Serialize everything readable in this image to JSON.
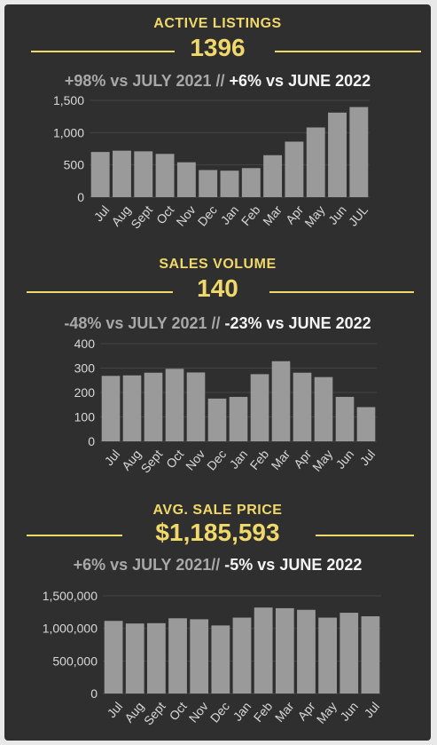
{
  "colors": {
    "accent": "#f0d96a",
    "background": "#2f2f2f",
    "bar": "#9a9a9a",
    "text_muted": "#a8a8a8",
    "text_light": "#f4f4f4"
  },
  "sections": [
    {
      "title": "ACTIVE LISTINGS",
      "headline": "1396",
      "compare_prior": "+98% vs JULY 2021",
      "compare_sep": " // ",
      "compare_recent": "+6% vs JUNE 2022"
    },
    {
      "title": "SALES VOLUME",
      "headline": "140",
      "compare_prior": "-48% vs JULY 2021",
      "compare_sep": " // ",
      "compare_recent": "-23% vs JUNE 2022"
    },
    {
      "title": "AVG. SALE PRICE",
      "headline": "$1,185,593",
      "compare_prior": "+6% vs JULY 2021",
      "compare_sep": "// ",
      "compare_recent": "-5% vs JUNE 2022"
    }
  ],
  "chart_data": [
    {
      "type": "bar",
      "title": "ACTIVE LISTINGS",
      "categories": [
        "Jul",
        "Aug",
        "Sept",
        "Oct",
        "Nov",
        "Dec",
        "Jan",
        "Feb",
        "Mar",
        "Apr",
        "May",
        "Jun",
        "JUL"
      ],
      "values": [
        700,
        720,
        710,
        670,
        540,
        420,
        410,
        450,
        650,
        860,
        1080,
        1310,
        1396
      ],
      "ylim": [
        0,
        1500
      ],
      "yticks": [
        0,
        500,
        1000,
        1500
      ],
      "ytick_labels": [
        "0",
        "500",
        "1,000",
        "1,500"
      ],
      "grid": true
    },
    {
      "type": "bar",
      "title": "SALES VOLUME",
      "categories": [
        "Jul",
        "Aug",
        "Sept",
        "Oct",
        "Nov",
        "Dec",
        "Jan",
        "Feb",
        "Mar",
        "Apr",
        "May",
        "Jun",
        "Jul"
      ],
      "values": [
        268,
        270,
        281,
        297,
        282,
        175,
        182,
        275,
        328,
        281,
        263,
        182,
        140
      ],
      "ylim": [
        0,
        400
      ],
      "yticks": [
        0,
        100,
        200,
        300,
        400
      ],
      "ytick_labels": [
        "0",
        "100",
        "200",
        "300",
        "400"
      ],
      "grid": true
    },
    {
      "type": "bar",
      "title": "AVG. SALE PRICE",
      "categories": [
        "Jul",
        "Aug",
        "Sept",
        "Oct",
        "Nov",
        "Dec",
        "Jan",
        "Feb",
        "Mar",
        "Apr",
        "May",
        "Jun",
        "Jul"
      ],
      "values": [
        1115000,
        1075000,
        1080000,
        1155000,
        1140000,
        1045000,
        1165000,
        1320000,
        1310000,
        1285000,
        1165000,
        1240000,
        1185593
      ],
      "ylim": [
        0,
        1500000
      ],
      "yticks": [
        0,
        500000,
        1000000,
        1500000
      ],
      "ytick_labels": [
        "0",
        "500,000",
        "1,000,000",
        "1,500,000"
      ],
      "grid": true
    }
  ]
}
